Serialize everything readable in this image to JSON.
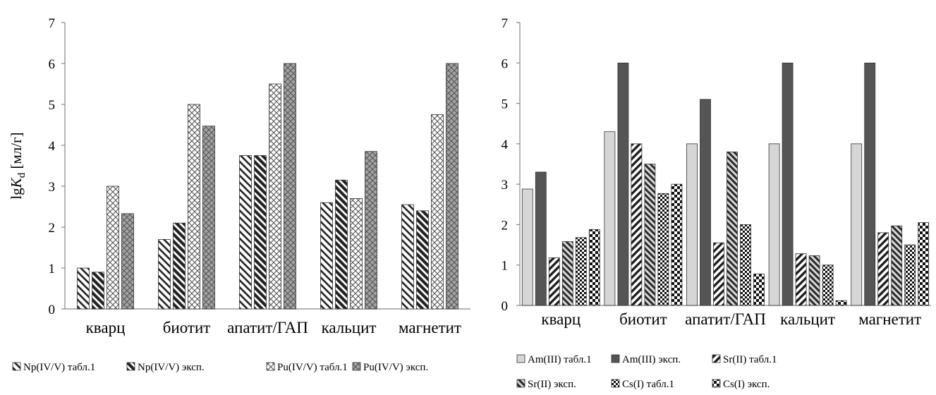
{
  "chart_data": [
    {
      "type": "bar",
      "ylabel": "lgK_d [мл/г]",
      "ylabel_parts": {
        "prefix": "lg",
        "var": "K",
        "sub": "d",
        "unit": " [мл/г]"
      },
      "ylim": [
        0,
        7
      ],
      "yticks": [
        "0",
        "1",
        "2",
        "3",
        "4",
        "5",
        "6",
        "7"
      ],
      "grid": false,
      "legend_position": "bottom",
      "categories": [
        "кварц",
        "биотит",
        "апатит/ГАП",
        "кальцит",
        "магнетит"
      ],
      "series": [
        {
          "name": "Np(IV/V) табл.1",
          "values": [
            1.0,
            1.7,
            3.75,
            2.6,
            2.55
          ],
          "pattern": "diag-light",
          "legend_x": 0
        },
        {
          "name": "Np(IV/V) эксп.",
          "values": [
            0.9,
            2.1,
            3.75,
            3.15,
            2.4
          ],
          "pattern": "diag-dark",
          "legend_x": 0
        },
        {
          "name": "Pu(IV/V) табл.1",
          "values": [
            3.0,
            5.0,
            5.5,
            2.7,
            4.75
          ],
          "pattern": "cross-light",
          "legend_x": 0
        },
        {
          "name": "Pu(IV/V) эксп.",
          "values": [
            2.33,
            4.47,
            6.0,
            3.85,
            6.0
          ],
          "pattern": "cross-dark",
          "legend_x": 0
        }
      ]
    },
    {
      "type": "bar",
      "ylim": [
        0,
        7
      ],
      "yticks": [
        "0",
        "1",
        "2",
        "3",
        "4",
        "5",
        "6",
        "7"
      ],
      "grid": false,
      "legend_position": "bottom",
      "categories": [
        "кварц",
        "биотит",
        "апатит/ГАП",
        "кальцит",
        "магнетит"
      ],
      "series": [
        {
          "name": "Am(III) табл.1",
          "values": [
            2.88,
            4.3,
            4.0,
            4.0,
            4.0
          ],
          "pattern": "light-gray"
        },
        {
          "name": "Am(III) эксп.",
          "values": [
            3.3,
            6.0,
            5.1,
            6.0,
            6.0
          ],
          "pattern": "dark-gray"
        },
        {
          "name": "Sr(II) табл.1",
          "values": [
            1.18,
            4.0,
            1.55,
            1.28,
            1.8
          ],
          "pattern": "backdiag"
        },
        {
          "name": "Sr(II) эксп.",
          "values": [
            1.58,
            3.5,
            3.8,
            1.23,
            1.97
          ],
          "pattern": "diag-dense"
        },
        {
          "name": "Cs(I) табл.1",
          "values": [
            1.68,
            2.77,
            2.0,
            1.0,
            1.5
          ],
          "pattern": "checker-small"
        },
        {
          "name": "Cs(I) эксп.",
          "values": [
            1.88,
            3.0,
            0.78,
            0.12,
            2.05
          ],
          "pattern": "checker-big"
        }
      ]
    }
  ]
}
